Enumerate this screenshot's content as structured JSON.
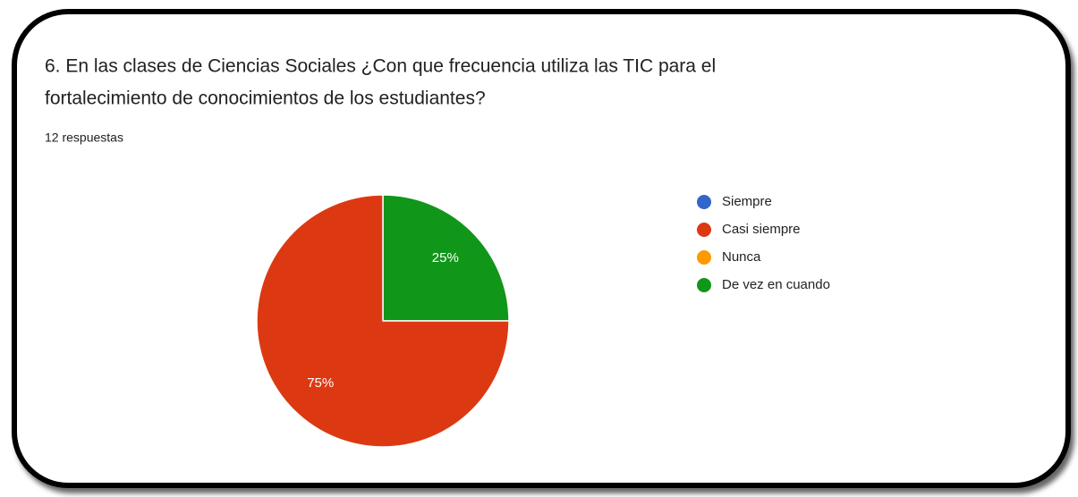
{
  "chart_data": {
    "type": "pie",
    "title": [
      "6. En las clases de Ciencias Sociales ¿Con que frecuencia utiliza las TIC para el",
      "fortalecimiento de conocimientos de los estudiantes?"
    ],
    "subtitle": "12 respuestas",
    "categories": [
      "Siempre",
      "Casi siempre",
      "Nunca",
      "De vez en cuando"
    ],
    "values": [
      0,
      75,
      0,
      25
    ],
    "value_labels": [
      null,
      "75%",
      null,
      "25%"
    ],
    "colors": [
      "#3366cc",
      "#dc3912",
      "#ff9900",
      "#109618"
    ]
  }
}
